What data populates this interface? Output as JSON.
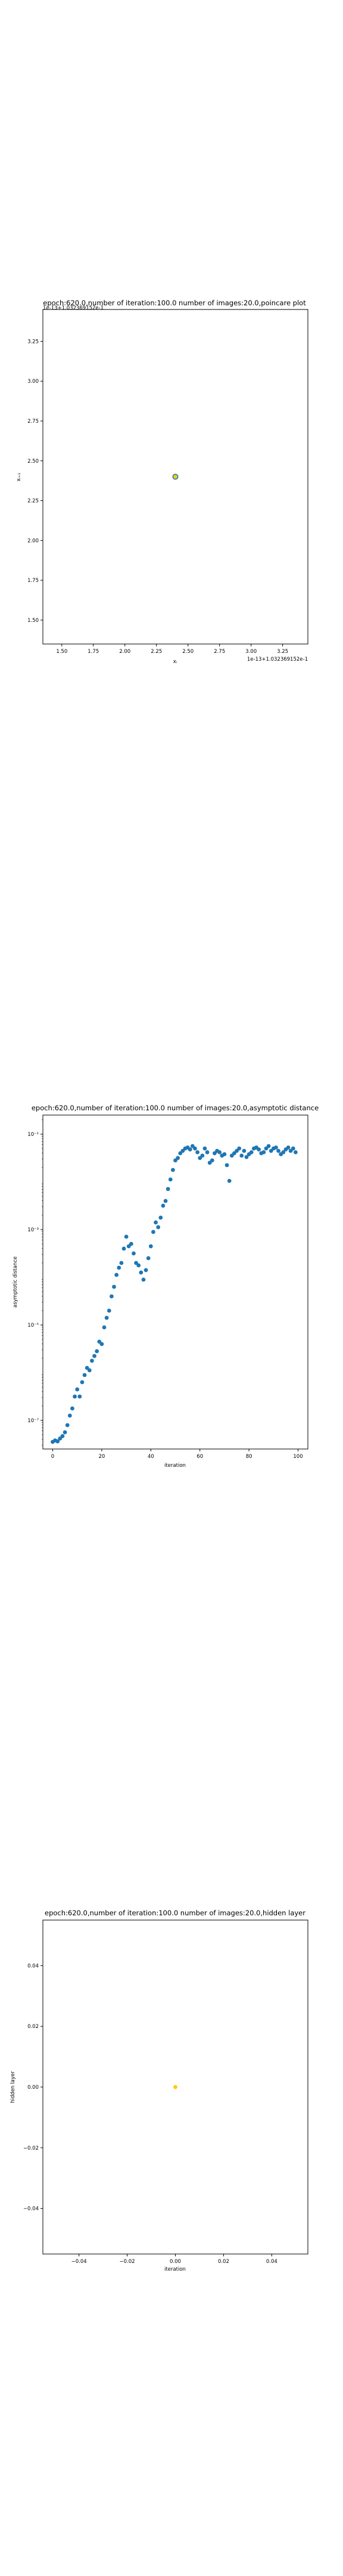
{
  "chart_data": [
    {
      "type": "scatter",
      "title": "epoch:620.0,number of iteration:100.0 number of images:20.0,poincare plot",
      "overlay_text": "1e-13+1.032369152e-1",
      "xlabel": "xᵢ",
      "ylabel": "xᵢ₊₁",
      "x_offset_text": "1e-13+1.032369152e-1",
      "xlim": [
        1.35,
        3.45
      ],
      "ylim": [
        1.35,
        3.45
      ],
      "xticks": [
        "1.50",
        "1.75",
        "2.00",
        "2.25",
        "2.50",
        "2.75",
        "3.00",
        "3.25"
      ],
      "yticks": [
        "1.50",
        "1.75",
        "2.00",
        "2.25",
        "2.50",
        "2.75",
        "3.00",
        "3.25"
      ],
      "points": [
        {
          "x": 2.4,
          "y": 2.4,
          "color": "#1f77b4"
        },
        {
          "x": 2.4,
          "y": 2.4,
          "color": "#ffcc00"
        }
      ]
    },
    {
      "type": "scatter",
      "title": "epoch:620.0,number of iteration:100.0  number of images:20.0,asymptotic distance",
      "xlabel": "iteration",
      "ylabel": "asymptotic distance",
      "y_scale": "log",
      "xlim": [
        -4,
        104
      ],
      "ylim_log10": [
        -7.6,
        -0.6
      ],
      "xticks": [
        "0",
        "20",
        "40",
        "60",
        "80",
        "100"
      ],
      "yticks": [
        "10⁻⁷",
        "10⁻⁵",
        "10⁻³",
        "10⁻¹"
      ],
      "color": "#1f77b4",
      "series": [
        {
          "x": [
            0,
            1,
            2,
            3,
            4,
            5,
            6,
            7,
            8,
            9,
            10,
            11,
            12,
            13,
            14,
            15,
            16,
            17,
            18,
            19,
            20,
            21,
            22,
            23,
            24,
            25,
            26,
            27,
            28,
            29,
            30,
            31,
            32,
            33,
            34,
            35,
            36,
            37,
            38,
            39,
            40,
            41,
            42,
            43,
            44,
            45,
            46,
            47,
            48,
            49,
            50,
            51,
            52,
            53,
            54,
            55,
            56,
            57,
            58,
            59,
            60,
            61,
            62,
            63,
            64,
            65,
            66,
            67,
            68,
            69,
            70,
            71,
            72,
            73,
            74,
            75,
            76,
            77,
            78,
            79,
            80,
            81,
            82,
            83,
            84,
            85,
            86,
            87,
            88,
            89,
            90,
            91,
            92,
            93,
            94,
            95,
            96,
            97,
            98,
            99
          ],
          "log10_y": [
            -7.45,
            -7.42,
            -7.44,
            -7.38,
            -7.33,
            -7.25,
            -7.1,
            -6.9,
            -6.75,
            -6.5,
            -6.35,
            -6.5,
            -6.2,
            -6.05,
            -5.9,
            -5.95,
            -5.75,
            -5.65,
            -5.55,
            -5.35,
            -5.4,
            -5.05,
            -4.85,
            -4.7,
            -4.4,
            -4.2,
            -3.95,
            -3.8,
            -3.7,
            -3.4,
            -3.15,
            -3.35,
            -3.3,
            -3.5,
            -3.7,
            -3.75,
            -3.9,
            -4.05,
            -3.85,
            -3.6,
            -3.35,
            -3.05,
            -2.85,
            -2.95,
            -2.75,
            -2.5,
            -2.4,
            -2.15,
            -1.95,
            -1.75,
            -1.55,
            -1.5,
            -1.4,
            -1.35,
            -1.3,
            -1.28,
            -1.32,
            -1.25,
            -1.3,
            -1.38,
            -1.5,
            -1.45,
            -1.3,
            -1.38,
            -1.6,
            -1.55,
            -1.4,
            -1.35,
            -1.38,
            -1.45,
            -1.42,
            -1.65,
            -1.98,
            -1.45,
            -1.4,
            -1.35,
            -1.3,
            -1.45,
            -1.35,
            -1.48,
            -1.42,
            -1.38,
            -1.3,
            -1.28,
            -1.32,
            -1.4,
            -1.38,
            -1.3,
            -1.25,
            -1.35,
            -1.3,
            -1.28,
            -1.35,
            -1.42,
            -1.38,
            -1.32,
            -1.28,
            -1.35,
            -1.3,
            -1.38
          ]
        }
      ]
    },
    {
      "type": "scatter",
      "title": "epoch:620.0,number of iteration:100.0  number of images:20.0,hidden layer",
      "xlabel": "iteration",
      "ylabel": "hidden layer",
      "xlim": [
        -0.055,
        0.055
      ],
      "ylim": [
        -0.055,
        0.055
      ],
      "xticks": [
        "−0.04",
        "−0.02",
        "0.00",
        "0.02",
        "0.04"
      ],
      "yticks": [
        "−0.04",
        "−0.02",
        "0.00",
        "0.02",
        "0.04"
      ],
      "points": [
        {
          "x": 0.0,
          "y": 0.0,
          "color": "#ffcc00"
        }
      ]
    }
  ]
}
